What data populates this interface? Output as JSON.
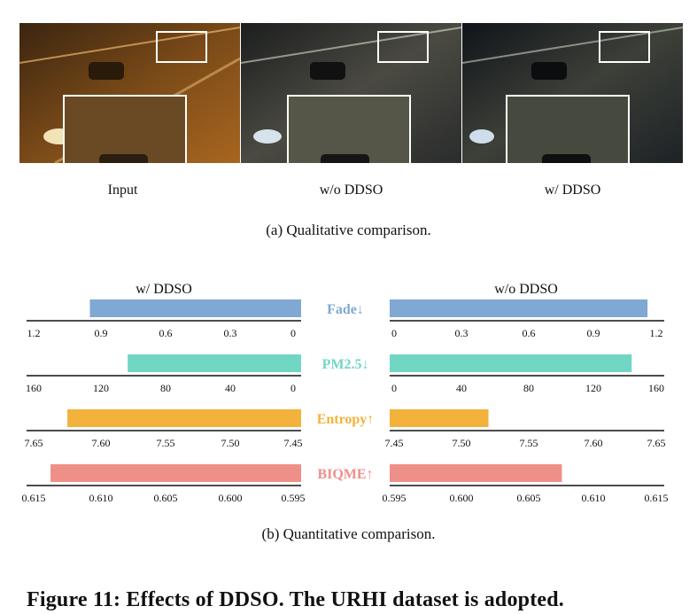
{
  "panel_a": {
    "images": [
      {
        "label": "Input"
      },
      {
        "label": "w/o DDSO"
      },
      {
        "label": "w/ DDSO"
      }
    ],
    "caption": "(a)  Qualitative comparison."
  },
  "chart_data": {
    "type": "bar",
    "title_left": "w/ DDSO",
    "title_right": "w/o DDSO",
    "metrics": [
      {
        "name": "Fade",
        "arrow": "↓",
        "color": "#7fa8d2",
        "with_ddso": 0.94,
        "without_ddso": 1.16,
        "axis_min": 0,
        "axis_max": 1.2,
        "ticks": [
          "1.2",
          "0.9",
          "0.6",
          "0.3",
          "0"
        ],
        "ticks_right": [
          "0",
          "0.3",
          "0.6",
          "0.9",
          "1.2"
        ]
      },
      {
        "name": "PM2.5",
        "arrow": "↓",
        "color": "#72d6c4",
        "with_ddso": 102,
        "without_ddso": 145,
        "axis_min": 0,
        "axis_max": 160,
        "ticks": [
          "160",
          "120",
          "80",
          "40",
          "0"
        ],
        "ticks_right": [
          "0",
          "40",
          "80",
          "120",
          "160"
        ]
      },
      {
        "name": "Entropy",
        "arrow": "↑",
        "color": "#f3b23b",
        "with_ddso": 7.624,
        "without_ddso": 7.522,
        "axis_min": 7.45,
        "axis_max": 7.65,
        "ticks": [
          "7.65",
          "7.60",
          "7.55",
          "7.50",
          "7.45"
        ],
        "ticks_right": [
          "7.45",
          "7.50",
          "7.55",
          "7.60",
          "7.65"
        ]
      },
      {
        "name": "BIQME",
        "arrow": "↑",
        "color": "#ef9088",
        "with_ddso": 0.6137,
        "without_ddso": 0.6078,
        "axis_min": 0.595,
        "axis_max": 0.615,
        "ticks": [
          "0.615",
          "0.610",
          "0.605",
          "0.600",
          "0.595"
        ],
        "ticks_right": [
          "0.595",
          "0.600",
          "0.605",
          "0.610",
          "0.615"
        ]
      }
    ]
  },
  "panel_b": {
    "caption": "(b)  Quantitative comparison."
  },
  "figure_caption": "Figure 11: Effects of DDSO. The URHI dataset is adopted."
}
